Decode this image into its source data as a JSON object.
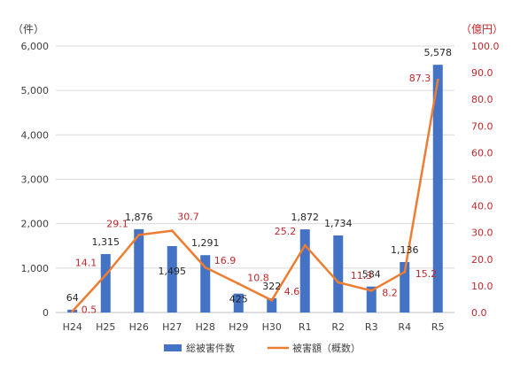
{
  "chart_data": {
    "type": "bar",
    "categories": [
      "H24",
      "H25",
      "H26",
      "H27",
      "H28",
      "H29",
      "H30",
      "R1",
      "R2",
      "R3",
      "R4",
      "R5"
    ],
    "left_axis": {
      "unit": "（件）",
      "ylim": [
        0,
        6000
      ],
      "ticks": [
        0,
        1000,
        2000,
        3000,
        4000,
        5000,
        6000
      ],
      "tick_labels": [
        "0",
        "1,000",
        "2,000",
        "3,000",
        "4,000",
        "5,000",
        "6,000"
      ]
    },
    "right_axis": {
      "unit": "（億円）",
      "ylim": [
        0,
        100
      ],
      "ticks": [
        0,
        10,
        20,
        30,
        40,
        50,
        60,
        70,
        80,
        90,
        100
      ],
      "tick_labels": [
        "0.0",
        "10.0",
        "20.0",
        "30.0",
        "40.0",
        "50.0",
        "60.0",
        "70.0",
        "80.0",
        "90.0",
        "100.0"
      ]
    },
    "series": [
      {
        "name": "総被害件数",
        "kind": "bar",
        "axis": "left",
        "color": "#4472c4",
        "values": [
          64,
          1315,
          1876,
          1495,
          1291,
          425,
          322,
          1872,
          1734,
          584,
          1136,
          5578
        ],
        "labels": [
          "64",
          "1,315",
          "1,876",
          "1,495",
          "1,291",
          "425",
          "322",
          "1,872",
          "1,734",
          "584",
          "1,136",
          "5,578"
        ]
      },
      {
        "name": "被害額（概数）",
        "kind": "line",
        "axis": "right",
        "color": "#ed7d31",
        "values": [
          0.5,
          14.1,
          29.1,
          30.7,
          16.9,
          10.8,
          4.6,
          25.2,
          11.3,
          8.2,
          15.2,
          87.3
        ],
        "labels": [
          "0.5",
          "14.1",
          "29.1",
          "30.7",
          "16.9",
          "10.8",
          "4.6",
          "25.2",
          "11.3",
          "8.2",
          "15.2",
          "87.3"
        ]
      }
    ],
    "grid": true,
    "legend_position": "bottom"
  }
}
